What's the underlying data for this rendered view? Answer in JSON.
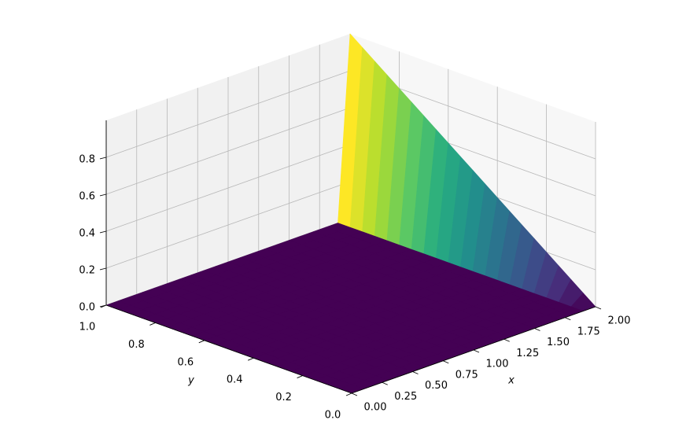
{
  "chart_data": {
    "type": "surface",
    "colormap": "viridis",
    "grid": true,
    "xlabel": "x",
    "ylabel": "y",
    "x": [
      0,
      0.1,
      0.2,
      0.3,
      0.4,
      0.5,
      0.6,
      0.7,
      0.8,
      0.9,
      1.0,
      1.1,
      1.2,
      1.3,
      1.4,
      1.5,
      1.6,
      1.7,
      1.8,
      1.9,
      2.0
    ],
    "y": [
      0,
      0.05,
      0.1,
      0.15,
      0.2,
      0.25,
      0.3,
      0.35,
      0.4,
      0.45,
      0.5,
      0.55,
      0.6,
      0.65,
      0.7,
      0.75,
      0.8,
      0.85,
      0.9,
      0.95,
      1.0
    ],
    "z": [
      [
        0,
        0,
        0,
        0,
        0,
        0,
        0,
        0,
        0,
        0,
        0,
        0,
        0,
        0,
        0,
        0,
        0,
        0,
        0,
        0,
        0
      ],
      [
        0,
        0,
        0,
        0,
        0,
        0,
        0,
        0,
        0,
        0,
        0,
        0,
        0,
        0,
        0,
        0,
        0,
        0,
        0,
        0,
        0.05
      ],
      [
        0,
        0,
        0,
        0,
        0,
        0,
        0,
        0,
        0,
        0,
        0,
        0,
        0,
        0,
        0,
        0,
        0,
        0,
        0,
        0,
        0.1
      ],
      [
        0,
        0,
        0,
        0,
        0,
        0,
        0,
        0,
        0,
        0,
        0,
        0,
        0,
        0,
        0,
        0,
        0,
        0,
        0,
        0,
        0.15
      ],
      [
        0,
        0,
        0,
        0,
        0,
        0,
        0,
        0,
        0,
        0,
        0,
        0,
        0,
        0,
        0,
        0,
        0,
        0,
        0,
        0,
        0.2
      ],
      [
        0,
        0,
        0,
        0,
        0,
        0,
        0,
        0,
        0,
        0,
        0,
        0,
        0,
        0,
        0,
        0,
        0,
        0,
        0,
        0,
        0.25
      ],
      [
        0,
        0,
        0,
        0,
        0,
        0,
        0,
        0,
        0,
        0,
        0,
        0,
        0,
        0,
        0,
        0,
        0,
        0,
        0,
        0,
        0.3
      ],
      [
        0,
        0,
        0,
        0,
        0,
        0,
        0,
        0,
        0,
        0,
        0,
        0,
        0,
        0,
        0,
        0,
        0,
        0,
        0,
        0,
        0.35
      ],
      [
        0,
        0,
        0,
        0,
        0,
        0,
        0,
        0,
        0,
        0,
        0,
        0,
        0,
        0,
        0,
        0,
        0,
        0,
        0,
        0,
        0.4
      ],
      [
        0,
        0,
        0,
        0,
        0,
        0,
        0,
        0,
        0,
        0,
        0,
        0,
        0,
        0,
        0,
        0,
        0,
        0,
        0,
        0,
        0.45
      ],
      [
        0,
        0,
        0,
        0,
        0,
        0,
        0,
        0,
        0,
        0,
        0,
        0,
        0,
        0,
        0,
        0,
        0,
        0,
        0,
        0,
        0.5
      ],
      [
        0,
        0,
        0,
        0,
        0,
        0,
        0,
        0,
        0,
        0,
        0,
        0,
        0,
        0,
        0,
        0,
        0,
        0,
        0,
        0,
        0.55
      ],
      [
        0,
        0,
        0,
        0,
        0,
        0,
        0,
        0,
        0,
        0,
        0,
        0,
        0,
        0,
        0,
        0,
        0,
        0,
        0,
        0,
        0.6
      ],
      [
        0,
        0,
        0,
        0,
        0,
        0,
        0,
        0,
        0,
        0,
        0,
        0,
        0,
        0,
        0,
        0,
        0,
        0,
        0,
        0,
        0.65
      ],
      [
        0,
        0,
        0,
        0,
        0,
        0,
        0,
        0,
        0,
        0,
        0,
        0,
        0,
        0,
        0,
        0,
        0,
        0,
        0,
        0,
        0.7
      ],
      [
        0,
        0,
        0,
        0,
        0,
        0,
        0,
        0,
        0,
        0,
        0,
        0,
        0,
        0,
        0,
        0,
        0,
        0,
        0,
        0,
        0.75
      ],
      [
        0,
        0,
        0,
        0,
        0,
        0,
        0,
        0,
        0,
        0,
        0,
        0,
        0,
        0,
        0,
        0,
        0,
        0,
        0,
        0,
        0.8
      ],
      [
        0,
        0,
        0,
        0,
        0,
        0,
        0,
        0,
        0,
        0,
        0,
        0,
        0,
        0,
        0,
        0,
        0,
        0,
        0,
        0,
        0.85
      ],
      [
        0,
        0,
        0,
        0,
        0,
        0,
        0,
        0,
        0,
        0,
        0,
        0,
        0,
        0,
        0,
        0,
        0,
        0,
        0,
        0,
        0.9
      ],
      [
        0,
        0,
        0,
        0,
        0,
        0,
        0,
        0,
        0,
        0,
        0,
        0,
        0,
        0,
        0,
        0,
        0,
        0,
        0,
        0,
        0.95
      ],
      [
        0,
        0,
        0,
        0,
        0,
        0,
        0,
        0,
        0,
        0,
        0,
        0,
        0,
        0,
        0,
        0,
        0,
        0,
        0,
        0,
        1.0
      ]
    ],
    "xlim": [
      0,
      2
    ],
    "ylim": [
      0,
      1
    ],
    "zlim": [
      0,
      1
    ],
    "xticks": [
      {
        "value": 0,
        "label": "0.00"
      },
      {
        "value": 0.25,
        "label": "0.25"
      },
      {
        "value": 0.5,
        "label": "0.50"
      },
      {
        "value": 0.75,
        "label": "0.75"
      },
      {
        "value": 1,
        "label": "1.00"
      },
      {
        "value": 1.25,
        "label": "1.25"
      },
      {
        "value": 1.5,
        "label": "1.50"
      },
      {
        "value": 1.75,
        "label": "1.75"
      },
      {
        "value": 2,
        "label": "2.00"
      }
    ],
    "yticks": [
      {
        "value": 0,
        "label": "0.0"
      },
      {
        "value": 0.2,
        "label": "0.2"
      },
      {
        "value": 0.4,
        "label": "0.4"
      },
      {
        "value": 0.6,
        "label": "0.6"
      },
      {
        "value": 0.8,
        "label": "0.8"
      },
      {
        "value": 1,
        "label": "1.0"
      }
    ],
    "zticks": [
      {
        "value": 0,
        "label": "0.0"
      },
      {
        "value": 0.2,
        "label": "0.2"
      },
      {
        "value": 0.4,
        "label": "0.4"
      },
      {
        "value": 0.6,
        "label": "0.6"
      },
      {
        "value": 0.8,
        "label": "0.8"
      }
    ]
  }
}
